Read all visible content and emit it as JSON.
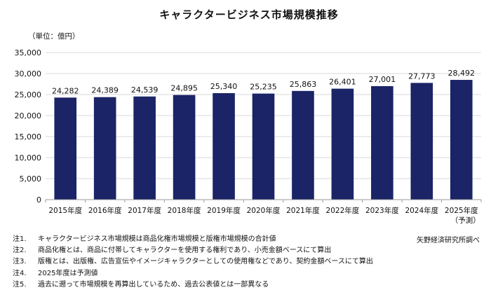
{
  "chart_data": {
    "type": "bar",
    "title": "キャラクタービジネス市場規模推移",
    "unit_label": "（単位：億円）",
    "categories": [
      "2015年度",
      "2016年度",
      "2017年度",
      "2018年度",
      "2019年度",
      "2020年度",
      "2021年度",
      "2022年度",
      "2023年度",
      "2024年度",
      "2025年度"
    ],
    "category_sublabels": [
      "",
      "",
      "",
      "",
      "",
      "",
      "",
      "",
      "",
      "",
      "（予測）"
    ],
    "values": [
      24282,
      24389,
      24539,
      24895,
      25340,
      25235,
      25863,
      26401,
      27001,
      27773,
      28492
    ],
    "value_labels": [
      "24,282",
      "24,389",
      "24,539",
      "24,895",
      "25,340",
      "25,235",
      "25,863",
      "26,401",
      "27,001",
      "27,773",
      "28,492"
    ],
    "ylim": [
      0,
      35000
    ],
    "yticks": [
      0,
      5000,
      10000,
      15000,
      20000,
      25000,
      30000,
      35000
    ],
    "ytick_labels": [
      "0",
      "5,000",
      "10,000",
      "15,000",
      "20,000",
      "25,000",
      "30,000",
      "35,000"
    ],
    "xlabel": "",
    "ylabel": "",
    "bar_color": "#1a2466"
  },
  "source": "矢野経済研究所調べ",
  "notes": [
    {
      "label": "注1.",
      "text": "キャラクタービジネス市場規模は商品化権市場規模と版権市場規模の合計値"
    },
    {
      "label": "注2.",
      "text": "商品化権とは、商品に付帯してキャラクターを使用する権利であり、小売金額ベースにて算出"
    },
    {
      "label": "注3.",
      "text": "版権とは、出版権、広告宣伝やイメージキャラクターとしての使用権などであり、契約金額ベースにて算出"
    },
    {
      "label": "注4.",
      "text": "2025年度は予測値"
    },
    {
      "label": "注5.",
      "text": "過去に遡って市場規模を再算出しているため、過去公表値とは一部異なる"
    }
  ]
}
